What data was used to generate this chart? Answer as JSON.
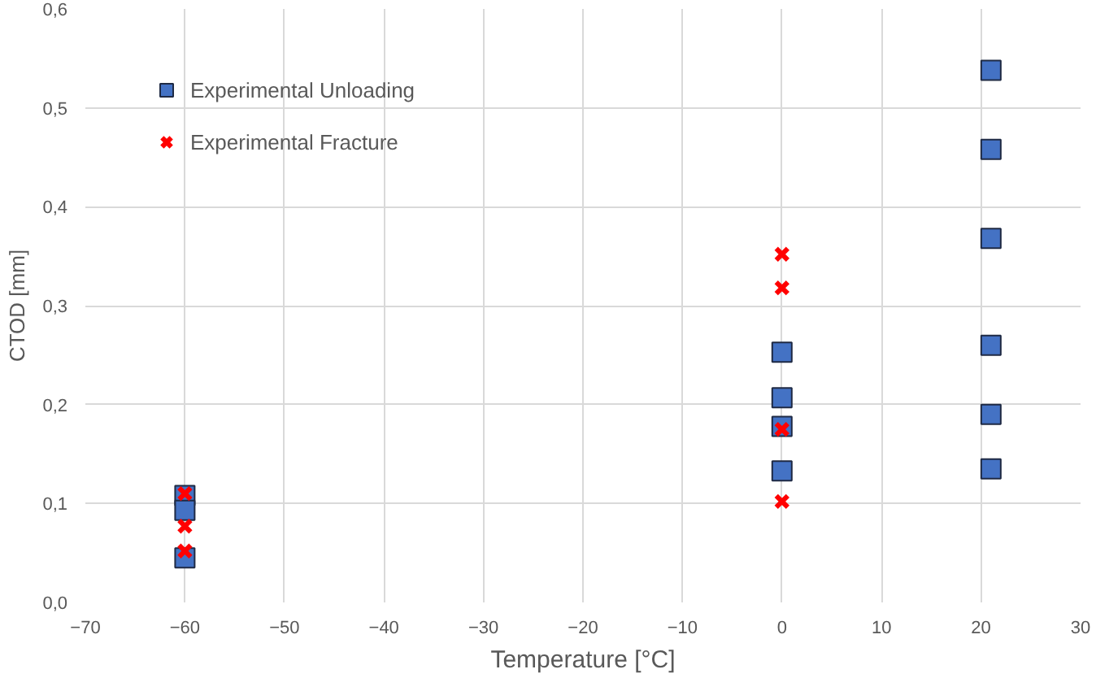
{
  "chart_data": {
    "type": "scatter",
    "xlabel": "Temperature [°C]",
    "ylabel": "CTOD [mm]",
    "xlim": [
      -70,
      30
    ],
    "xticks": [
      -70,
      -60,
      -50,
      -40,
      -30,
      -20,
      -10,
      0,
      10,
      20,
      30
    ],
    "ylim": [
      0,
      0.6
    ],
    "yticks": [
      {
        "value": 0,
        "label": "0,0"
      },
      {
        "value": 0.1,
        "label": "0,1"
      },
      {
        "value": 0.2,
        "label": "0,2"
      },
      {
        "value": 0.3,
        "label": "0,3"
      },
      {
        "value": 0.4,
        "label": "0,4"
      },
      {
        "value": 0.5,
        "label": "0,5"
      },
      {
        "value": 0.6,
        "label": "0,6"
      }
    ],
    "grid": true,
    "legend": "top left",
    "series": [
      {
        "name": "Experimental Unloading",
        "color": "#4472c4",
        "marker": "square",
        "x": [
          -60,
          -60,
          -60,
          0,
          0,
          0,
          0,
          21,
          21,
          21,
          21,
          21,
          21
        ],
        "values": [
          0.108,
          0.093,
          0.045,
          0.253,
          0.207,
          0.178,
          0.133,
          0.538,
          0.458,
          0.368,
          0.26,
          0.19,
          0.135
        ]
      },
      {
        "name": "Experimental Fracture",
        "color": "#ff0000",
        "marker": "cross",
        "x": [
          -60,
          -60,
          -60,
          0,
          0,
          0,
          0
        ],
        "values": [
          0.11,
          0.077,
          0.052,
          0.352,
          0.318,
          0.175,
          0.102
        ]
      }
    ]
  }
}
